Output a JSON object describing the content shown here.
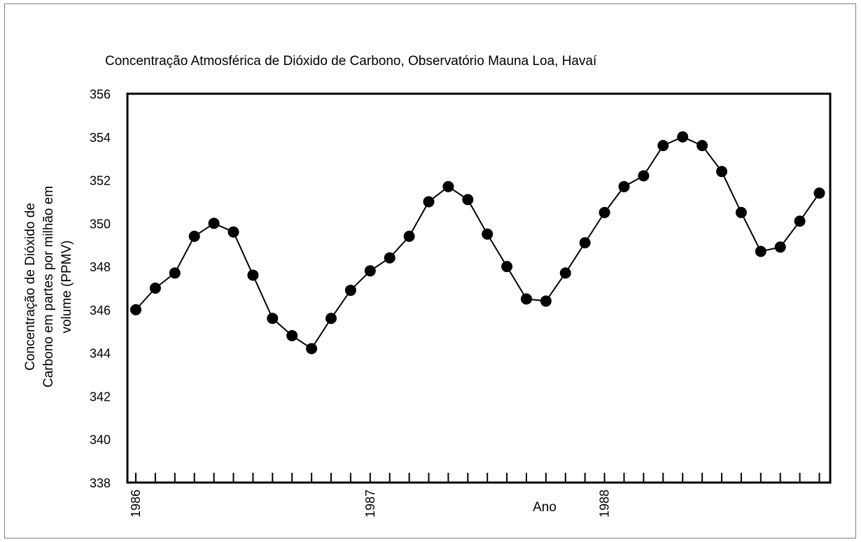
{
  "chart_data": {
    "type": "line",
    "title": "Concentração Atmosférica de Dióxido de Carbono, Observatório Mauna Loa, Havaí",
    "xlabel": "Ano",
    "ylabel_lines": [
      "Concentração de Dióxido de",
      "Carbono em partes por milhão em",
      "volume (PPMV)"
    ],
    "ylim": [
      338,
      356
    ],
    "yticks": [
      338,
      340,
      342,
      344,
      346,
      348,
      350,
      352,
      354,
      356
    ],
    "x_year_labels": [
      {
        "label": "1986",
        "index": 0
      },
      {
        "label": "1987",
        "index": 12
      },
      {
        "label": "1988",
        "index": 24
      }
    ],
    "grid": false,
    "marker": "filled-circle",
    "line_color": "#000000",
    "series": [
      {
        "values": [
          346.0,
          347.0,
          347.7,
          349.4,
          350.0,
          349.6,
          347.6,
          345.6,
          344.8,
          344.2,
          345.6,
          346.9,
          347.8,
          348.4,
          349.4,
          351.0,
          351.7,
          351.1,
          349.5,
          348.0,
          346.5,
          346.4,
          347.7,
          349.1,
          350.5,
          351.7,
          352.2,
          353.6,
          354.0,
          353.6,
          352.4,
          350.5,
          348.7,
          348.9,
          350.1,
          351.4
        ]
      }
    ]
  }
}
